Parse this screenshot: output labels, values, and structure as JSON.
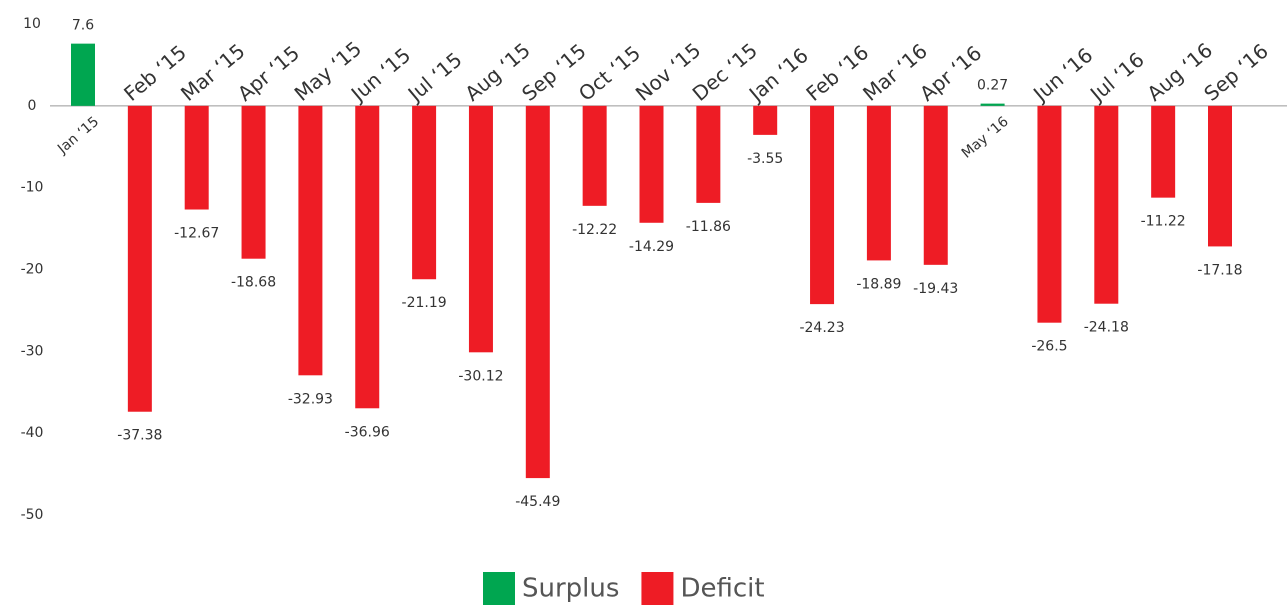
{
  "chart_data": {
    "type": "bar",
    "categories": [
      "Jan ‘15",
      "Feb ‘15",
      "Mar ‘15",
      "Apr ‘15",
      "May ‘15",
      "Jun ‘15",
      "Jul ‘15",
      "Aug ‘15",
      "Sep ‘15",
      "Oct ‘15",
      "Nov ‘15",
      "Dec ‘15",
      "Jan ‘16",
      "Feb ‘16",
      "Mar ‘16",
      "Apr ‘16",
      "May ‘16",
      "Jun ‘16",
      "Jul ‘16",
      "Aug ‘16",
      "Sep ‘16"
    ],
    "series": [
      {
        "name": "Surplus",
        "color": "#00a650",
        "values": [
          7.6,
          null,
          null,
          null,
          null,
          null,
          null,
          null,
          null,
          null,
          null,
          null,
          null,
          null,
          null,
          null,
          0.27,
          null,
          null,
          null,
          null
        ]
      },
      {
        "name": "Deficit",
        "color": "#ee1c25",
        "values": [
          null,
          -37.38,
          -12.67,
          -18.68,
          -32.93,
          -36.96,
          -21.19,
          -30.12,
          -45.49,
          -12.22,
          -14.29,
          -11.86,
          -3.55,
          -24.23,
          -18.89,
          -19.43,
          null,
          -26.5,
          -24.18,
          -11.22,
          -17.18
        ]
      }
    ],
    "ylim": [
      -50,
      10
    ],
    "yticks": [
      -50,
      -40,
      -30,
      -20,
      -10,
      0,
      10
    ]
  }
}
